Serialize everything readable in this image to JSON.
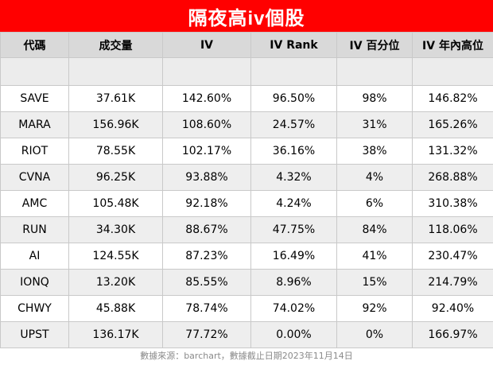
{
  "title": "隔夜高iv個股",
  "headers": [
    "代碼",
    "成交量",
    "IV",
    "IV Rank",
    "IV 百分位",
    "IV 年內高位"
  ],
  "rows": [
    [
      "SAVE",
      "37.61K",
      "142.60%",
      "96.50%",
      "98%",
      "146.82%"
    ],
    [
      "MARA",
      "156.96K",
      "108.60%",
      "24.57%",
      "31%",
      "165.26%"
    ],
    [
      "RIOT",
      "78.55K",
      "102.17%",
      "36.16%",
      "38%",
      "131.32%"
    ],
    [
      "CVNA",
      "96.25K",
      "93.88%",
      "4.32%",
      "4%",
      "268.88%"
    ],
    [
      "AMC",
      "105.48K",
      "92.18%",
      "4.24%",
      "6%",
      "310.38%"
    ],
    [
      "RUN",
      "34.30K",
      "88.67%",
      "47.75%",
      "84%",
      "118.06%"
    ],
    [
      "AI",
      "124.55K",
      "87.23%",
      "16.49%",
      "41%",
      "230.47%"
    ],
    [
      "IONQ",
      "13.20K",
      "85.55%",
      "8.96%",
      "15%",
      "214.79%"
    ],
    [
      "CHWY",
      "45.88K",
      "78.74%",
      "74.02%",
      "92%",
      "92.40%"
    ],
    [
      "UPST",
      "136.17K",
      "77.72%",
      "0.00%",
      "0%",
      "166.97%"
    ]
  ],
  "footer": "數據來源：barchart，數據截止日期2023年11月14日",
  "colors": {
    "title_bg": "#ff0000",
    "header_bg": "#d9d9d9",
    "alt_row_bg": "#eeeeee"
  }
}
